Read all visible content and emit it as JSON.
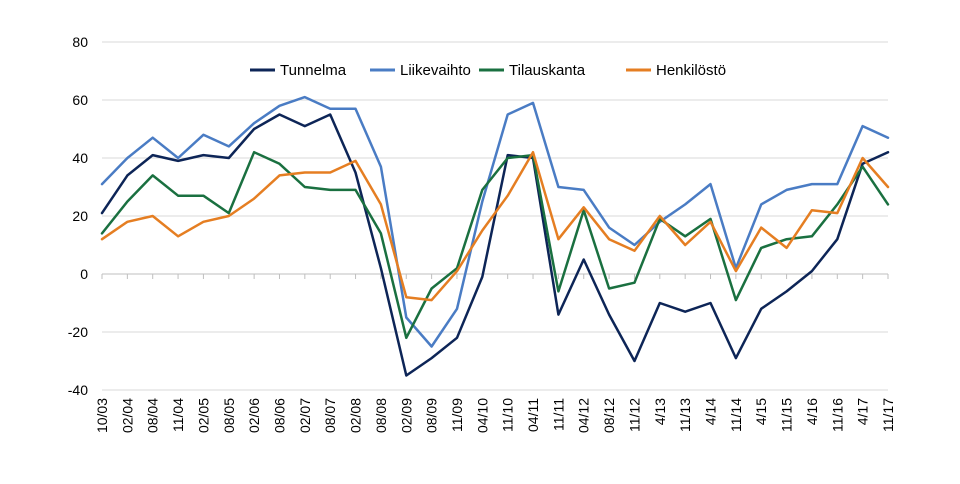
{
  "chart_data": {
    "type": "line",
    "title": "",
    "xlabel": "",
    "ylabel": "",
    "ylim": [
      -40,
      80
    ],
    "yticks": [
      -40,
      -20,
      0,
      20,
      40,
      60,
      80
    ],
    "grid": "horizontal",
    "legend_position": "top",
    "categories": [
      "10/03",
      "02/04",
      "08/04",
      "11/04",
      "02/05",
      "08/05",
      "02/06",
      "08/06",
      "02/07",
      "08/07",
      "02/08",
      "08/08",
      "02/09",
      "08/09",
      "11/09",
      "04/10",
      "11/10",
      "04/11",
      "11/11",
      "04/12",
      "08/12",
      "11/12",
      "4/13",
      "11/13",
      "4/14",
      "11/14",
      "4/15",
      "11/15",
      "4/16",
      "11/16",
      "4/17",
      "11/17"
    ],
    "series": [
      {
        "name": "Tunnelma",
        "color": "#0d2557",
        "values": [
          21,
          34,
          41,
          39,
          41,
          40,
          50,
          55,
          51,
          55,
          35,
          2,
          -35,
          -29,
          -22,
          -1,
          41,
          40,
          -14,
          5,
          -14,
          -30,
          -10,
          -13,
          -10,
          -29,
          -12,
          -6,
          1,
          12,
          38,
          42
        ]
      },
      {
        "name": "Liikevaihto",
        "color": "#4a7cc4",
        "values": [
          31,
          40,
          47,
          40,
          48,
          44,
          52,
          58,
          61,
          57,
          57,
          37,
          -15,
          -25,
          -12,
          25,
          55,
          59,
          30,
          29,
          16,
          10,
          18,
          24,
          31,
          2,
          24,
          29,
          31,
          31,
          51,
          47
        ]
      },
      {
        "name": "Tilauskanta",
        "color": "#1a7040",
        "values": [
          14,
          25,
          34,
          27,
          27,
          21,
          42,
          38,
          30,
          29,
          29,
          14,
          -22,
          -5,
          2,
          29,
          40,
          41,
          -6,
          22,
          -5,
          -3,
          19,
          13,
          19,
          -9,
          9,
          12,
          13,
          24,
          37,
          24
        ]
      },
      {
        "name": "Henkilöstö",
        "color": "#e57e22",
        "values": [
          12,
          18,
          20,
          13,
          18,
          20,
          26,
          34,
          35,
          35,
          39,
          24,
          -8,
          -9,
          1,
          15,
          27,
          42,
          12,
          23,
          12,
          8,
          20,
          10,
          18,
          1,
          16,
          9,
          22,
          21,
          40,
          30
        ]
      }
    ]
  }
}
